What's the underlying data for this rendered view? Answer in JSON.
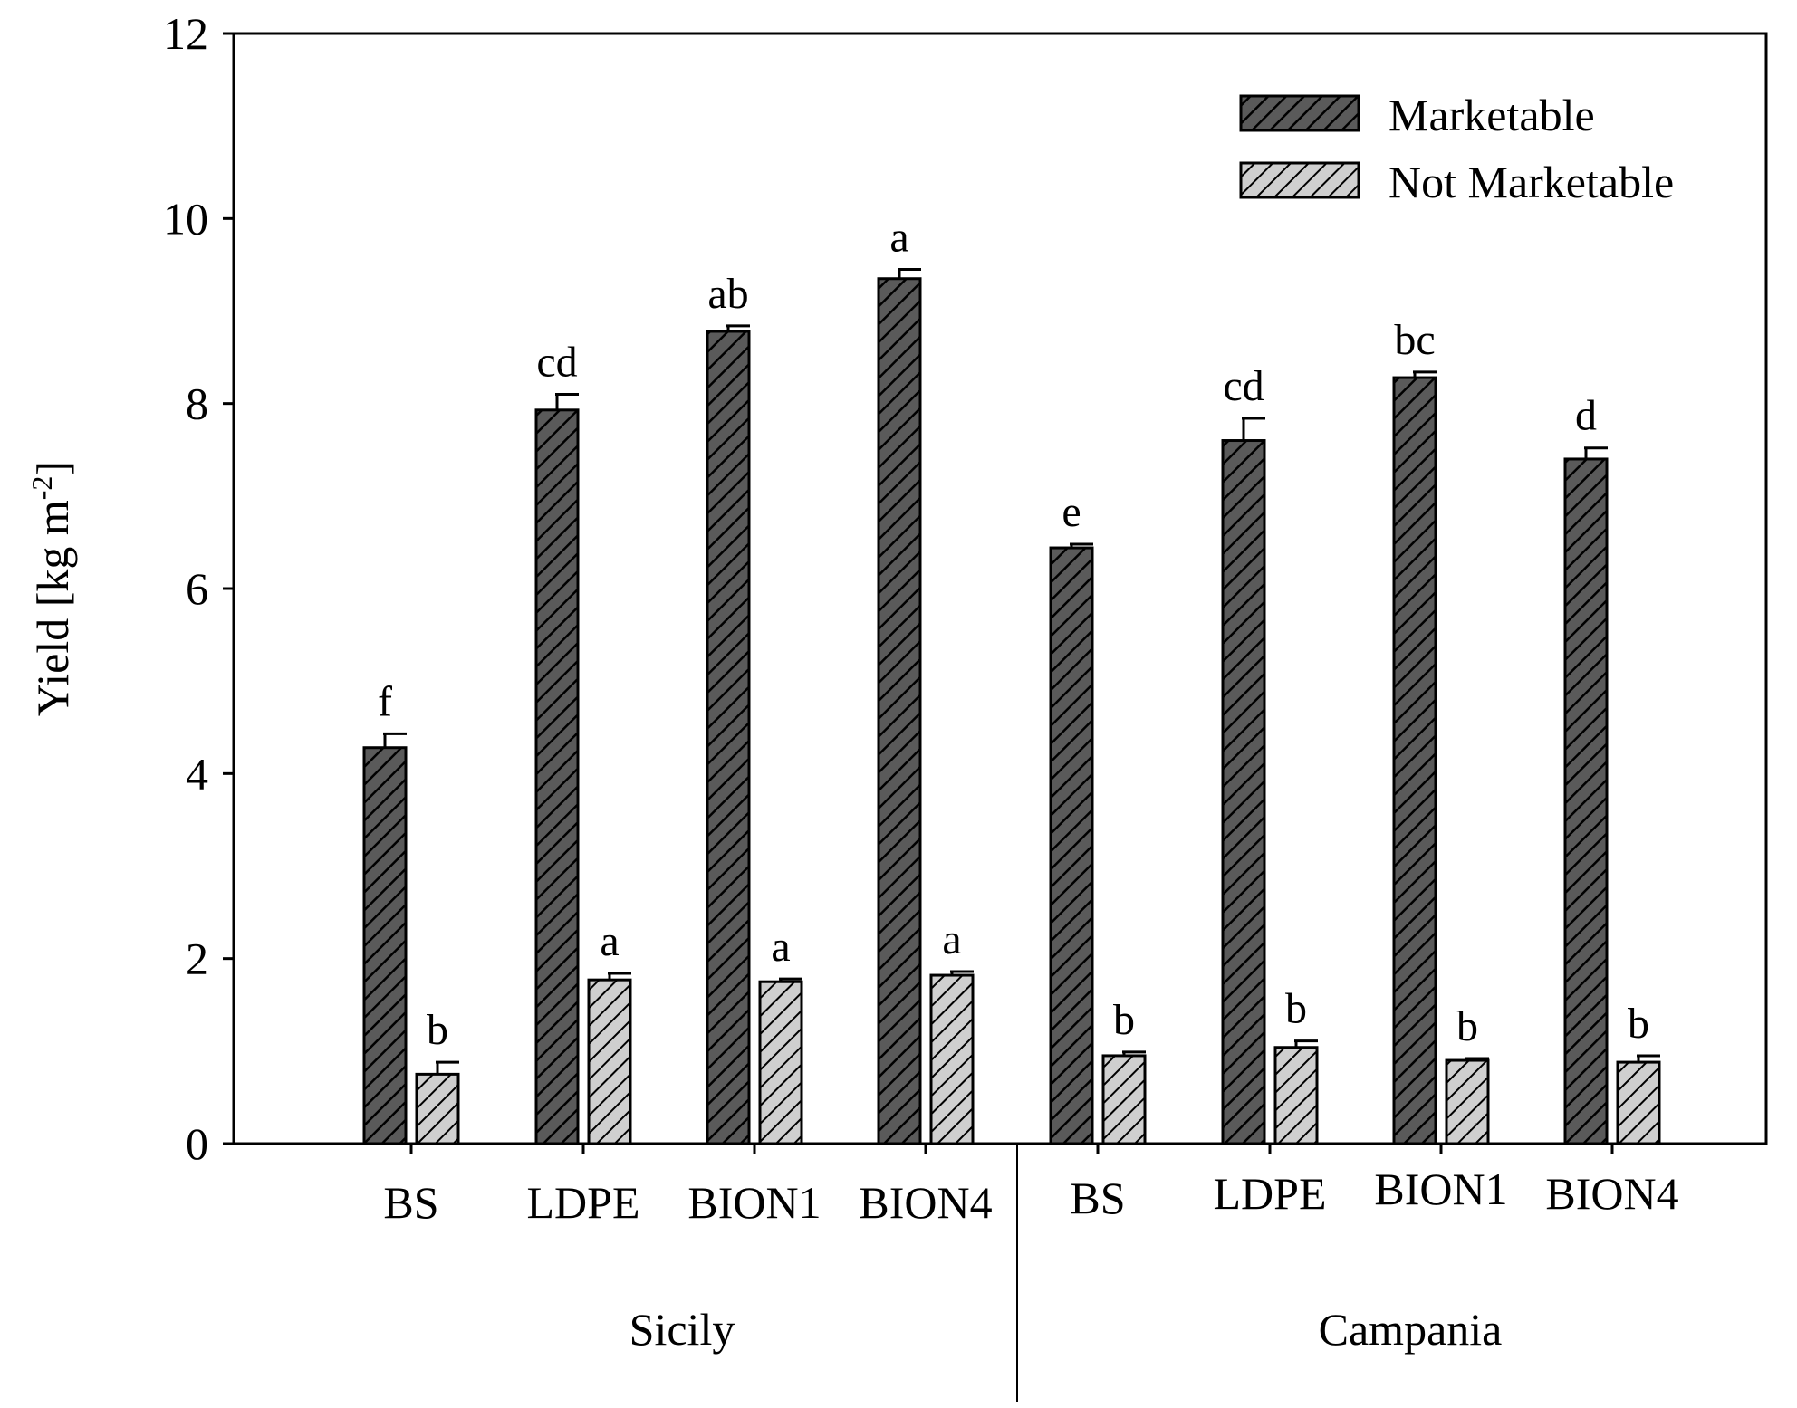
{
  "chart_data": {
    "type": "bar",
    "title": "",
    "ylabel": "Yield [kg m",
    "ylabel_sup": "-2",
    "ylabel_end": "]",
    "ylim": [
      0,
      12
    ],
    "yticks": [
      "0",
      "2",
      "4",
      "6",
      "8",
      "10",
      "12"
    ],
    "groups": [
      "Sicily",
      "Campania"
    ],
    "categories": [
      "BS",
      "LDPE",
      "BION1",
      "BION4",
      "BS",
      "LDPE",
      "BION1",
      "BION4"
    ],
    "series": [
      {
        "name": "Marketable",
        "color": "#5a5a5a",
        "values": [
          4.28,
          7.93,
          8.78,
          9.35,
          6.44,
          7.6,
          8.28,
          7.4
        ],
        "errors": [
          0.15,
          0.17,
          0.06,
          0.1,
          0.04,
          0.24,
          0.06,
          0.12
        ],
        "letters": [
          "f",
          "cd",
          "ab",
          "a",
          "e",
          "cd",
          "bc",
          "d"
        ]
      },
      {
        "name": "Not Marketable",
        "color": "#c8c8c8",
        "values": [
          0.75,
          1.77,
          1.75,
          1.82,
          0.95,
          1.04,
          0.9,
          0.88
        ],
        "errors": [
          0.13,
          0.07,
          0.03,
          0.04,
          0.04,
          0.07,
          0.02,
          0.07
        ],
        "letters": [
          "b",
          "a",
          "a",
          "a",
          "b",
          "b",
          "b",
          "b"
        ]
      }
    ],
    "legend_position": "top-right"
  }
}
